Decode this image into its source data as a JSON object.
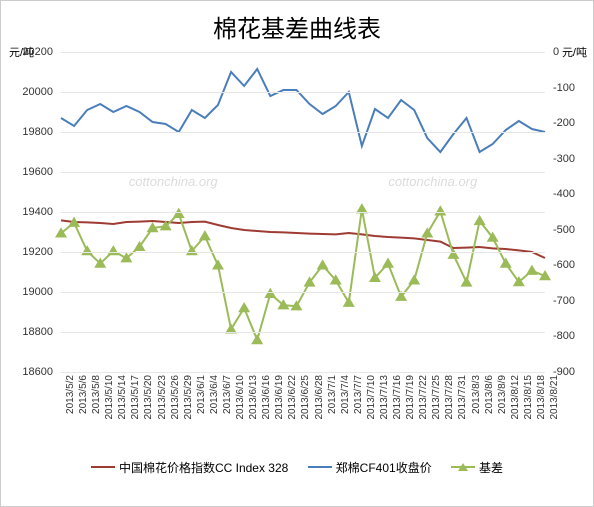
{
  "chart": {
    "type": "line-dual-axis",
    "title": "棉花基差曲线表",
    "title_fontsize": 24,
    "background_color": "#ffffff",
    "grid_color": "#e6e6e6",
    "border_color": "#888888",
    "watermarks": [
      "cottonchina.org",
      "cottonchina.org"
    ],
    "y_left": {
      "title": "元/吨",
      "min": 18600,
      "max": 20200,
      "step": 200,
      "ticks": [
        18600,
        18800,
        19000,
        19200,
        19400,
        19600,
        19800,
        20000,
        20200
      ],
      "label_fontsize": 11
    },
    "y_right": {
      "title": "元/吨",
      "min": -900,
      "max": 0,
      "step": 100,
      "ticks": [
        0,
        -100,
        -200,
        -300,
        -400,
        -500,
        -600,
        -700,
        -800,
        -900
      ],
      "label_fontsize": 11
    },
    "x": {
      "labels": [
        "2013/5/2",
        "2013/5/6",
        "2013/5/8",
        "2013/5/10",
        "2013/5/14",
        "2013/5/17",
        "2013/5/20",
        "2013/5/23",
        "2013/5/26",
        "2013/5/29",
        "2013/6/1",
        "2013/6/4",
        "2013/6/7",
        "2013/6/10",
        "2013/6/13",
        "2013/6/16",
        "2013/6/19",
        "2013/6/22",
        "2013/6/25",
        "2013/6/28",
        "2013/7/1",
        "2013/7/4",
        "2013/7/7",
        "2013/7/10",
        "2013/7/13",
        "2013/7/16",
        "2013/7/19",
        "2013/7/22",
        "2013/7/25",
        "2013/7/28",
        "2013/7/31",
        "2013/8/3",
        "2013/8/6",
        "2013/8/9",
        "2013/8/12",
        "2013/8/15",
        "2013/8/18",
        "2013/8/21"
      ],
      "label_fontsize": 10,
      "rotation": -90
    },
    "series": [
      {
        "name": "中国棉花价格指数CC Index 328",
        "axis": "left",
        "color": "#9e3b33",
        "line_width": 2,
        "marker": "none",
        "values": [
          19358,
          19350,
          19348,
          19345,
          19340,
          19350,
          19352,
          19355,
          19350,
          19345,
          19350,
          19352,
          19335,
          19320,
          19310,
          19305,
          19300,
          19298,
          19295,
          19292,
          19290,
          19288,
          19295,
          19288,
          19280,
          19275,
          19272,
          19268,
          19260,
          19252,
          19220,
          19222,
          19225,
          19218,
          19215,
          19208,
          19200,
          19170
        ]
      },
      {
        "name": "郑棉CF401收盘价",
        "axis": "left",
        "color": "#4a7ebb",
        "line_width": 2,
        "marker": "none",
        "values": [
          19870,
          19830,
          19910,
          19940,
          19900,
          19930,
          19900,
          19850,
          19840,
          19800,
          19910,
          19870,
          19935,
          20100,
          20030,
          20115,
          19980,
          20010,
          20010,
          19940,
          19890,
          19930,
          20000,
          19730,
          19915,
          19870,
          19960,
          19910,
          19770,
          19700,
          19790,
          19870,
          19700,
          19740,
          19810,
          19855,
          19815,
          19800
        ]
      },
      {
        "name": "基差",
        "axis": "right",
        "color": "#9bbb59",
        "line_width": 2,
        "marker": "triangle",
        "marker_size": 6,
        "values": [
          -510,
          -480,
          -560,
          -595,
          -560,
          -580,
          -548,
          -495,
          -490,
          -455,
          -560,
          -518,
          -600,
          -780,
          -720,
          -810,
          -680,
          -712,
          -715,
          -648,
          -600,
          -642,
          -705,
          -442,
          -635,
          -595,
          -688,
          -642,
          -510,
          -448,
          -570,
          -648,
          -475,
          -522,
          -595,
          -647,
          -615,
          -630
        ]
      }
    ],
    "legend": {
      "position": "bottom",
      "fontsize": 12,
      "items": [
        {
          "label": "中国棉花价格指数CC Index 328",
          "color": "#9e3b33",
          "style": "line"
        },
        {
          "label": "郑棉CF401收盘价",
          "color": "#4a7ebb",
          "style": "line"
        },
        {
          "label": "基差",
          "color": "#9bbb59",
          "style": "line-marker"
        }
      ]
    }
  }
}
